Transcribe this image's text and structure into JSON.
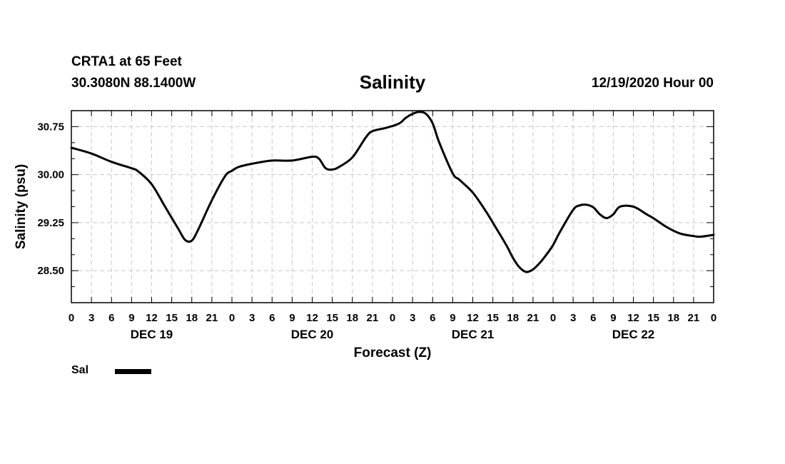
{
  "header": {
    "station": "CRTA1 at 65 Feet",
    "coords": "30.3080N 88.1400W",
    "title": "Salinity",
    "datetime": "12/19/2020 Hour 00"
  },
  "chart_data": {
    "type": "line",
    "title": "Salinity",
    "ylabel": "Salinity (psu)",
    "xlabel": "Forecast (Z)",
    "ylim": [
      28.0,
      31.0
    ],
    "xlim": [
      0,
      96
    ],
    "yticks": [
      28.5,
      29.25,
      30.0,
      30.75
    ],
    "ytick_labels": [
      "28.50",
      "29.25",
      "30.00",
      "30.75"
    ],
    "xtick_labels": [
      "0",
      "3",
      "6",
      "9",
      "12",
      "15",
      "18",
      "21",
      "0",
      "3",
      "6",
      "9",
      "12",
      "15",
      "18",
      "21",
      "0",
      "3",
      "6",
      "9",
      "12",
      "15",
      "18",
      "21",
      "0",
      "3",
      "6",
      "9",
      "12",
      "15",
      "18",
      "21",
      "0"
    ],
    "days": [
      {
        "label": "DEC 19",
        "hour": 12
      },
      {
        "label": "DEC 20",
        "hour": 36
      },
      {
        "label": "DEC 21",
        "hour": 60
      },
      {
        "label": "DEC 22",
        "hour": 84
      }
    ],
    "grid": true,
    "series": [
      {
        "name": "Sal",
        "color": "#000000",
        "x": [
          0,
          3,
          6,
          9,
          10,
          12,
          14,
          16,
          17,
          18,
          19,
          21,
          23,
          24,
          25,
          27,
          30,
          33,
          36,
          37,
          38,
          39,
          40,
          42,
          44,
          45,
          47,
          49,
          50,
          51,
          52,
          53,
          54,
          55,
          57,
          58,
          60,
          62,
          63,
          65,
          66,
          67,
          68,
          69,
          70,
          71,
          72,
          73,
          75,
          76,
          77,
          78,
          79,
          80,
          81,
          82,
          84,
          86,
          87,
          89,
          91,
          93,
          94,
          96
        ],
        "values": [
          30.42,
          30.33,
          30.2,
          30.1,
          30.05,
          29.85,
          29.5,
          29.15,
          28.98,
          28.97,
          29.15,
          29.6,
          29.98,
          30.06,
          30.12,
          30.17,
          30.22,
          30.22,
          30.28,
          30.25,
          30.1,
          30.08,
          30.12,
          30.27,
          30.58,
          30.68,
          30.73,
          30.8,
          30.89,
          30.95,
          30.98,
          30.95,
          30.8,
          30.5,
          30.02,
          29.92,
          29.72,
          29.42,
          29.25,
          28.9,
          28.7,
          28.55,
          28.48,
          28.52,
          28.62,
          28.75,
          28.9,
          29.1,
          29.45,
          29.52,
          29.53,
          29.49,
          29.38,
          29.32,
          29.38,
          29.5,
          29.5,
          29.38,
          29.32,
          29.18,
          29.08,
          29.04,
          29.03,
          29.06
        ]
      }
    ],
    "legend": {
      "label": "Sal",
      "placement": "bottom-left"
    }
  }
}
